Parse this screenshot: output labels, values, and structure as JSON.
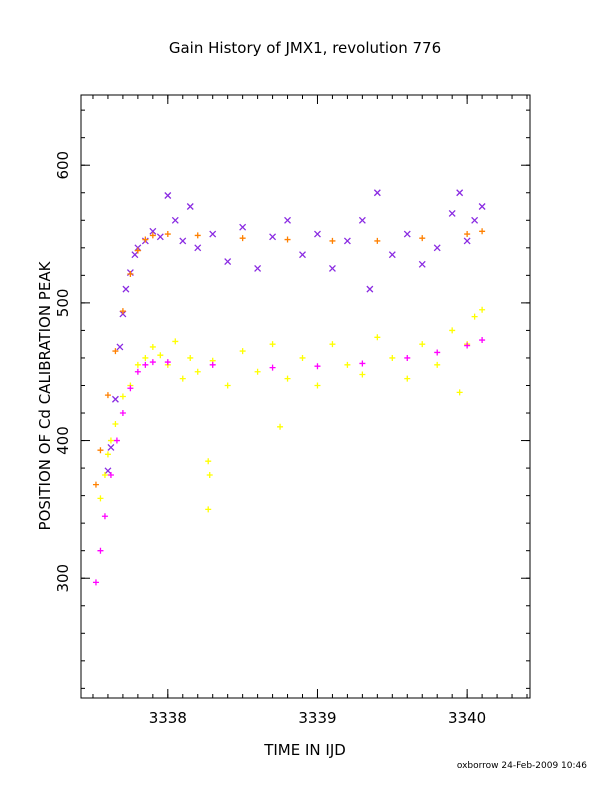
{
  "chart_data": {
    "type": "scatter",
    "title": "Gain History of JMX1, revolution 776",
    "xlabel": "TIME IN IJD",
    "ylabel": "POSITION OF Cd CALIBRATION PEAK",
    "footer": "oxborrow 24-Feb-2009 10:46",
    "xlim": [
      3337.42,
      3340.42
    ],
    "ylim": [
      213,
      651
    ],
    "x_ticks": [
      3338,
      3339,
      3340
    ],
    "x_tick_labels": [
      "3338",
      "3339",
      "3340"
    ],
    "y_ticks": [
      300,
      400,
      500,
      600
    ],
    "y_tick_labels": [
      "300",
      "400",
      "500",
      "600"
    ],
    "grid": false,
    "legend": "none",
    "series": [
      {
        "marker": "x",
        "color": "#8a2be2",
        "points": [
          [
            3337.6,
            378
          ],
          [
            3337.62,
            395
          ],
          [
            3337.65,
            430
          ],
          [
            3337.68,
            468
          ],
          [
            3337.7,
            492
          ],
          [
            3337.72,
            510
          ],
          [
            3337.75,
            522
          ],
          [
            3337.78,
            535
          ],
          [
            3337.8,
            540
          ],
          [
            3337.85,
            545
          ],
          [
            3337.9,
            552
          ],
          [
            3337.95,
            548
          ],
          [
            3338.0,
            578
          ],
          [
            3338.05,
            560
          ],
          [
            3338.1,
            545
          ],
          [
            3338.15,
            570
          ],
          [
            3338.2,
            540
          ],
          [
            3338.3,
            550
          ],
          [
            3338.4,
            530
          ],
          [
            3338.5,
            555
          ],
          [
            3338.6,
            525
          ],
          [
            3338.7,
            548
          ],
          [
            3338.8,
            560
          ],
          [
            3338.9,
            535
          ],
          [
            3339.0,
            550
          ],
          [
            3339.1,
            525
          ],
          [
            3339.2,
            545
          ],
          [
            3339.3,
            560
          ],
          [
            3339.35,
            510
          ],
          [
            3339.4,
            580
          ],
          [
            3339.5,
            535
          ],
          [
            3339.6,
            550
          ],
          [
            3339.7,
            528
          ],
          [
            3339.8,
            540
          ],
          [
            3339.9,
            565
          ],
          [
            3339.95,
            580
          ],
          [
            3340.0,
            545
          ],
          [
            3340.05,
            560
          ],
          [
            3340.1,
            570
          ]
        ]
      },
      {
        "marker": "+",
        "color": "#ffff00",
        "points": [
          [
            3337.55,
            358
          ],
          [
            3337.58,
            375
          ],
          [
            3337.6,
            390
          ],
          [
            3337.62,
            400
          ],
          [
            3337.65,
            412
          ],
          [
            3337.7,
            432
          ],
          [
            3337.75,
            440
          ],
          [
            3337.8,
            455
          ],
          [
            3337.85,
            460
          ],
          [
            3337.9,
            468
          ],
          [
            3337.95,
            462
          ],
          [
            3338.0,
            455
          ],
          [
            3338.05,
            472
          ],
          [
            3338.1,
            445
          ],
          [
            3338.15,
            460
          ],
          [
            3338.2,
            450
          ],
          [
            3338.27,
            385
          ],
          [
            3338.28,
            375
          ],
          [
            3338.27,
            350
          ],
          [
            3338.3,
            458
          ],
          [
            3338.4,
            440
          ],
          [
            3338.5,
            465
          ],
          [
            3338.6,
            450
          ],
          [
            3338.7,
            470
          ],
          [
            3338.75,
            410
          ],
          [
            3338.8,
            445
          ],
          [
            3338.9,
            460
          ],
          [
            3339.0,
            440
          ],
          [
            3339.1,
            470
          ],
          [
            3339.2,
            455
          ],
          [
            3339.3,
            448
          ],
          [
            3339.4,
            475
          ],
          [
            3339.5,
            460
          ],
          [
            3339.6,
            445
          ],
          [
            3339.7,
            470
          ],
          [
            3339.8,
            455
          ],
          [
            3339.9,
            480
          ],
          [
            3339.95,
            435
          ],
          [
            3340.0,
            470
          ],
          [
            3340.05,
            490
          ],
          [
            3340.1,
            495
          ]
        ]
      },
      {
        "marker": "+",
        "color": "#ff8000",
        "points": [
          [
            3337.52,
            368
          ],
          [
            3337.55,
            393
          ],
          [
            3337.6,
            433
          ],
          [
            3337.65,
            465
          ],
          [
            3337.7,
            494
          ],
          [
            3337.75,
            521
          ],
          [
            3337.8,
            538
          ],
          [
            3337.85,
            546
          ],
          [
            3337.9,
            549
          ],
          [
            3338.0,
            550
          ],
          [
            3338.2,
            549
          ],
          [
            3338.5,
            547
          ],
          [
            3338.8,
            546
          ],
          [
            3339.1,
            545
          ],
          [
            3339.4,
            545
          ],
          [
            3339.7,
            547
          ],
          [
            3340.0,
            550
          ],
          [
            3340.1,
            552
          ]
        ]
      },
      {
        "marker": "+",
        "color": "#ff00ff",
        "points": [
          [
            3337.52,
            297
          ],
          [
            3337.55,
            320
          ],
          [
            3337.58,
            345
          ],
          [
            3337.62,
            375
          ],
          [
            3337.66,
            400
          ],
          [
            3337.7,
            420
          ],
          [
            3337.75,
            438
          ],
          [
            3337.8,
            450
          ],
          [
            3337.85,
            455
          ],
          [
            3337.9,
            457
          ],
          [
            3338.0,
            457
          ],
          [
            3338.3,
            455
          ],
          [
            3338.7,
            453
          ],
          [
            3339.0,
            454
          ],
          [
            3339.3,
            456
          ],
          [
            3339.6,
            460
          ],
          [
            3339.8,
            464
          ],
          [
            3340.0,
            469
          ],
          [
            3340.1,
            473
          ]
        ]
      }
    ]
  }
}
